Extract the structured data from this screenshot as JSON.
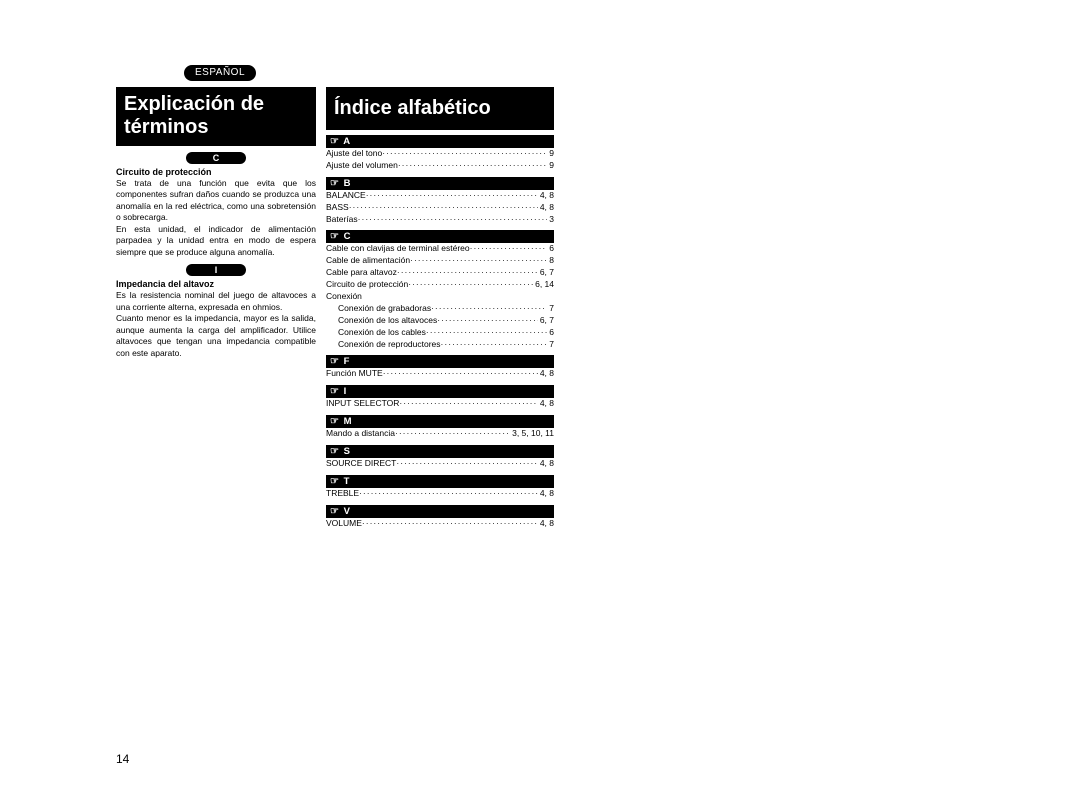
{
  "langBadge": "ESPAÑOL",
  "pageNumber": "14",
  "dots": "·······················································································",
  "left": {
    "heading": "Explicación de términos",
    "sections": [
      {
        "letter": "C",
        "title": "Circuito de protección",
        "body": "Se trata de una función que evita que los componentes sufran daños cuando se produzca una anomalía en la red eléctrica, como una sobretensión o sobrecarga.\nEn esta unidad, el indicador de alimentación parpadea y la unidad entra en modo de espera siempre que se produce alguna anomalía."
      },
      {
        "letter": "I",
        "title": "Impedancia del altavoz",
        "body": "Es la resistencia nominal del juego de altavoces a una corriente alterna, expresada en ohmios.\nCuanto menor es la impedancia, mayor es la salida, aunque aumenta la carga del amplificador. Utilice altavoces que tengan una impedancia compatible con este aparato."
      }
    ]
  },
  "index": {
    "heading": "Índice alfabético",
    "groups": [
      {
        "letter": "A",
        "entries": [
          {
            "label": "Ajuste del tono",
            "pages": "9"
          },
          {
            "label": "Ajuste del volumen",
            "pages": "9"
          }
        ]
      },
      {
        "letter": "B",
        "entries": [
          {
            "label": "BALANCE",
            "pages": "4, 8"
          },
          {
            "label": "BASS",
            "pages": "4, 8"
          },
          {
            "label": "Baterías",
            "pages": "3"
          }
        ]
      },
      {
        "letter": "C",
        "entries": [
          {
            "label": "Cable con clavijas de terminal estéreo",
            "pages": "6"
          },
          {
            "label": "Cable de alimentación",
            "pages": "8"
          },
          {
            "label": "Cable para altavoz",
            "pages": "6, 7"
          },
          {
            "label": "Circuito de protección",
            "pages": "6, 14"
          },
          {
            "label": "Conexión",
            "pages": ""
          },
          {
            "label": "Conexión de grabadoras",
            "pages": "7",
            "indent": true
          },
          {
            "label": "Conexión de los altavoces",
            "pages": "6, 7",
            "indent": true
          },
          {
            "label": "Conexión de los cables",
            "pages": "6",
            "indent": true
          },
          {
            "label": "Conexión de reproductores",
            "pages": "7",
            "indent": true
          }
        ]
      },
      {
        "letter": "F",
        "entries": [
          {
            "label": "Función MUTE",
            "pages": "4, 8"
          }
        ]
      },
      {
        "letter": "I",
        "entries": [
          {
            "label": "INPUT SELECTOR",
            "pages": "4, 8"
          }
        ]
      },
      {
        "letter": "M",
        "entries": [
          {
            "label": "Mando a distancia",
            "pages": "3, 5, 10, 11"
          }
        ]
      },
      {
        "letter": "S",
        "entries": [
          {
            "label": "SOURCE DIRECT",
            "pages": "4, 8"
          }
        ]
      },
      {
        "letter": "T",
        "entries": [
          {
            "label": "TREBLE",
            "pages": "4, 8"
          }
        ]
      },
      {
        "letter": "V",
        "entries": [
          {
            "label": "VOLUME",
            "pages": "4, 8"
          }
        ]
      }
    ]
  }
}
